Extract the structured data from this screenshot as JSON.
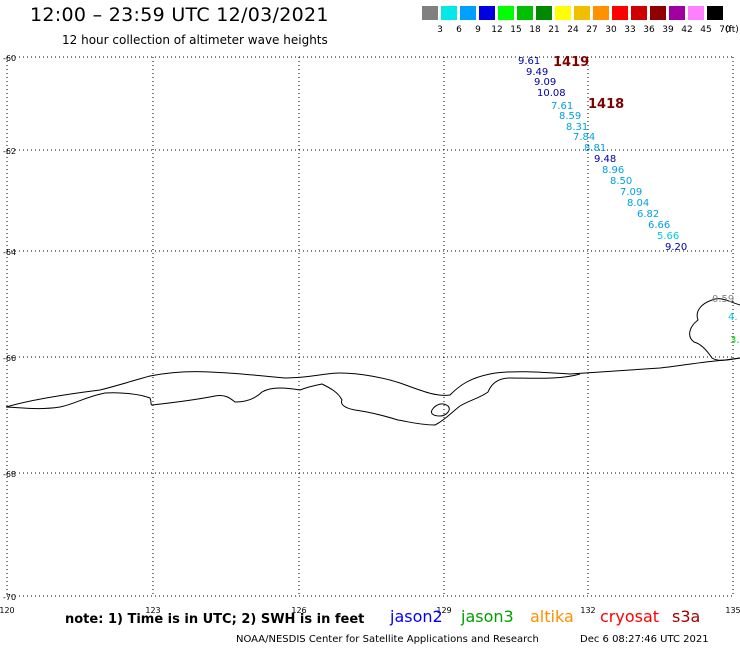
{
  "header": {
    "title": "12:00 – 23:59 UTC 12/03/2021",
    "subtitle": "12 hour collection of altimeter wave heights"
  },
  "legend": {
    "colors": [
      "#808080",
      "#00e8e8",
      "#00a0ff",
      "#0000e0",
      "#00ff00",
      "#00c000",
      "#008800",
      "#ffff00",
      "#f0c000",
      "#ff9000",
      "#ff0000",
      "#d00000",
      "#900000",
      "#a000a0",
      "#ff80ff",
      "#000000"
    ],
    "labels": [
      "3",
      "6",
      "9",
      "12",
      "15",
      "18",
      "21",
      "24",
      "27",
      "30",
      "33",
      "36",
      "39",
      "42",
      "45",
      "70"
    ],
    "unit": "(ft)"
  },
  "axes": {
    "lat_labels": [
      "-60",
      "-62",
      "-64",
      "-66",
      "-68",
      "-70"
    ],
    "lon_labels": [
      "120",
      "123",
      "126",
      "129",
      "132",
      "135"
    ]
  },
  "tracks": [
    {
      "id": "1419",
      "color": "#800000"
    },
    {
      "id": "1418",
      "color": "#800000"
    }
  ],
  "wave_labels": [
    {
      "text": "9.61",
      "color": "#0000a0"
    },
    {
      "text": "9.49",
      "color": "#0000a0"
    },
    {
      "text": "9.09",
      "color": "#0000a0"
    },
    {
      "text": "10.08",
      "color": "#0000a0"
    },
    {
      "text": "7.61",
      "color": "#00a0e0"
    },
    {
      "text": "8.59",
      "color": "#00a0e0"
    },
    {
      "text": "8.31",
      "color": "#00a0e0"
    },
    {
      "text": "7.84",
      "color": "#00a0e0"
    },
    {
      "text": "8.81",
      "color": "#00a0e0"
    },
    {
      "text": "9.48",
      "color": "#0000a0"
    },
    {
      "text": "8.96",
      "color": "#00a0e0"
    },
    {
      "text": "8.50",
      "color": "#00a0e0"
    },
    {
      "text": "7.09",
      "color": "#00a0e0"
    },
    {
      "text": "8.04",
      "color": "#00a0e0"
    },
    {
      "text": "6.82",
      "color": "#00a0e0"
    },
    {
      "text": "6.66",
      "color": "#00a0e0"
    },
    {
      "text": "5.66",
      "color": "#00c8e0"
    },
    {
      "text": "9.20",
      "color": "#0000a0"
    },
    {
      "text": "0.59",
      "color": "#808080"
    },
    {
      "text": "4.",
      "color": "#00c8e0"
    },
    {
      "text": "3.",
      "color": "#00d800"
    }
  ],
  "footer": {
    "note": "note: 1) Time is in UTC; 2) SWH is in feet",
    "satellites": [
      {
        "name": "jason2",
        "color": "#0000ff"
      },
      {
        "name": "jason3",
        "color": "#00a000"
      },
      {
        "name": "altika",
        "color": "#ff9000"
      },
      {
        "name": "cryosat",
        "color": "#ff0000"
      },
      {
        "name": "s3a",
        "color": "#a00000"
      }
    ],
    "credit": "NOAA/NESDIS Center for Satellite Applications and Research",
    "timestamp": "Dec  6 08:27:46 UTC 2021"
  }
}
